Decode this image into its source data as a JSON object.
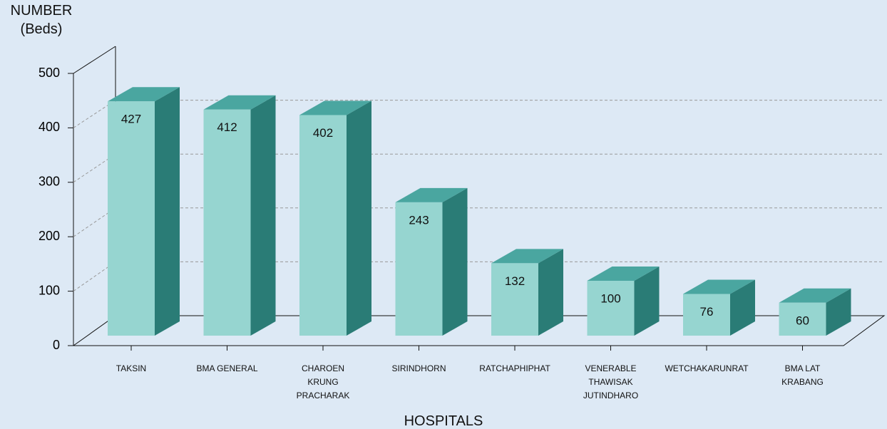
{
  "chart_data": {
    "type": "bar3d",
    "y_label": "NUMBER\n(Beds)",
    "x_label": "HOSPITALS",
    "categories": [
      "TAKSIN",
      "BMA GENERAL",
      "CHAROEN\nKRUNG\nPRACHARAK",
      "SIRINDHORN",
      "RATCHAPHIPHAT",
      "VENERABLE\nTHAWISAK\nJUTINDHARO",
      "WETCHAKARUNRAT",
      "BMA LAT\nKRABANG"
    ],
    "values": [
      427,
      412,
      402,
      243,
      132,
      100,
      76,
      60
    ],
    "color": "#96d5d0",
    "ylim": [
      0,
      500
    ],
    "yticks": [
      0,
      100,
      200,
      300,
      400,
      500
    ],
    "grid": true
  }
}
